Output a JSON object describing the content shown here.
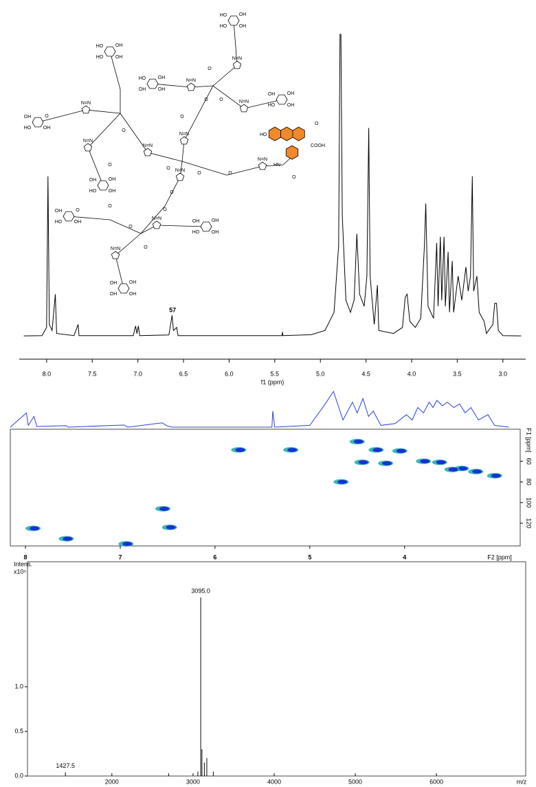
{
  "structure": {
    "sugars": [
      [
        "HO",
        "OH",
        "HO",
        "OH"
      ],
      [
        "HO",
        "OH",
        "HO",
        "OH"
      ],
      [
        "HO",
        "OH",
        "OH",
        "OH"
      ],
      [
        "OH",
        "OH",
        "HO",
        "OH"
      ],
      [
        "OH",
        "O",
        "HO",
        "OH"
      ],
      [
        "OH",
        "OH",
        "HO",
        "OH"
      ],
      [
        "OH",
        "O",
        "HO",
        "OH"
      ],
      [
        "OH",
        "OH",
        "OH",
        "OH"
      ],
      [
        "OH",
        "OH",
        "HO",
        "OH"
      ]
    ],
    "triazoles": [
      "N=N",
      "N=N",
      "N=N",
      "N=N",
      "N=N",
      "N=N",
      "N=N",
      "N=N",
      "N=N",
      "N=N",
      "N=N"
    ],
    "oxygens": [
      "O",
      "O",
      "O",
      "O",
      "O",
      "O",
      "O",
      "O",
      "O",
      "O",
      "O",
      "O",
      "O",
      "O"
    ],
    "fluorescein": [
      "HO",
      "O",
      "COOH",
      "HN",
      "O"
    ]
  },
  "chart_data": [
    {
      "type": "line",
      "color": "#000000",
      "xlabel": "f1 (ppm)",
      "annotation": "57",
      "xlim": [
        8.3,
        2.75
      ],
      "ylim": [
        0,
        100
      ],
      "xticks": [
        {
          "value": 8,
          "label": "8.0"
        },
        7.5,
        {
          "value": 7,
          "label": "7.0"
        },
        6.5,
        {
          "value": 6,
          "label": "6.0"
        },
        5.5,
        {
          "value": 5,
          "label": "5.0"
        },
        4.5,
        {
          "value": 4,
          "label": "4.0"
        },
        3.5,
        {
          "value": 3,
          "label": "3.0"
        }
      ],
      "x": [
        8.25,
        8.05,
        8.0,
        7.985,
        7.97,
        7.94,
        7.905,
        7.89,
        7.7,
        7.655,
        7.645,
        7.05,
        7.025,
        7.01,
        6.995,
        6.98,
        6.66,
        6.625,
        6.61,
        6.575,
        6.56,
        6.0,
        5.42,
        5.415,
        5.41,
        5.1,
        4.95,
        4.85,
        4.8,
        4.785,
        4.775,
        4.76,
        4.72,
        4.67,
        4.63,
        4.6,
        4.57,
        4.52,
        4.49,
        4.47,
        4.455,
        4.41,
        4.375,
        4.36,
        4.2,
        4.1,
        4.07,
        4.05,
        4.02,
        3.96,
        3.9,
        3.86,
        3.845,
        3.82,
        3.76,
        3.725,
        3.71,
        3.685,
        3.67,
        3.645,
        3.63,
        3.6,
        3.585,
        3.555,
        3.54,
        3.49,
        3.45,
        3.405,
        3.38,
        3.355,
        3.335,
        3.32,
        3.285,
        3.26,
        3.205,
        3.18,
        3.11,
        3.09,
        3.07,
        3.05,
        3.0,
        2.8
      ],
      "values": [
        0.2,
        0.3,
        3,
        53,
        4,
        2,
        14,
        1,
        0.3,
        4,
        0.3,
        0.3,
        3.5,
        1,
        3.5,
        0.3,
        0.5,
        7,
        2,
        3,
        0.3,
        0.3,
        0.3,
        1.5,
        0.3,
        0.6,
        2,
        8,
        30,
        100,
        100,
        40,
        12,
        8,
        12,
        34,
        14,
        10,
        20,
        69,
        20,
        4,
        17,
        2,
        1,
        3,
        13,
        14,
        5,
        3,
        6,
        30,
        44,
        10,
        6,
        31,
        10,
        33,
        12,
        33,
        10,
        28,
        8,
        25,
        8,
        20,
        12,
        23,
        15,
        20,
        53,
        15,
        20,
        8,
        5,
        1,
        4,
        11,
        11,
        2,
        0.3,
        0.2
      ]
    },
    {
      "type": "scatter",
      "color": "#1a2fd6",
      "halo_color": "#3cb8b4",
      "xlabel": "F2 [ppm]",
      "ylabel": "F1 [ppm]",
      "xlim": [
        8.16,
        2.78
      ],
      "ylim": [
        29,
        142
      ],
      "xticks": [
        8,
        7,
        6,
        5,
        4
      ],
      "yticks": [
        60,
        80,
        100,
        120
      ],
      "x": [
        7.92,
        7.57,
        6.94,
        6.55,
        6.48,
        5.75,
        5.2,
        4.67,
        4.5,
        4.3,
        4.05,
        3.63,
        3.4,
        3.05,
        4.45,
        4.2,
        3.8,
        3.5,
        3.25
      ],
      "values": [
        125,
        135,
        140,
        106,
        124,
        49,
        49,
        80,
        41,
        49,
        50,
        61,
        67,
        74,
        61,
        62,
        60,
        68,
        70
      ],
      "projection": {
        "color": "#2b3de0",
        "ylim": [
          0,
          100
        ],
        "x": [
          8.16,
          7.99,
          7.97,
          7.91,
          7.88,
          7.57,
          7.55,
          6.96,
          6.92,
          6.56,
          6.5,
          6.45,
          5.4,
          5.39,
          5.37,
          5.0,
          4.85,
          4.75,
          4.65,
          4.55,
          4.5,
          4.44,
          4.38,
          4.33,
          4.25,
          4.1,
          3.98,
          3.92,
          3.86,
          3.8,
          3.74,
          3.7,
          3.66,
          3.6,
          3.55,
          3.48,
          3.42,
          3.36,
          3.3,
          3.22,
          3.12,
          3.05,
          2.9
        ],
        "values": [
          0,
          40,
          5,
          30,
          2,
          4,
          0,
          6,
          0,
          12,
          3,
          0,
          0,
          45,
          0,
          5,
          60,
          100,
          20,
          70,
          40,
          80,
          30,
          45,
          5,
          10,
          35,
          20,
          55,
          40,
          70,
          55,
          75,
          60,
          70,
          55,
          65,
          40,
          55,
          20,
          35,
          5,
          0
        ]
      }
    },
    {
      "type": "stem",
      "color": "#000000",
      "ylabel": "Intens.",
      "yunit": "x10⁵",
      "xlabel": "m/z",
      "xlim": [
        960,
        7100
      ],
      "ylim": [
        0,
        2.4
      ],
      "xticks": [
        2000,
        3000,
        4000,
        5000,
        6000
      ],
      "yticks": [
        {
          "value": 0,
          "label": "0.0"
        },
        0.5,
        {
          "value": 1,
          "label": "1.0"
        }
      ],
      "x": [
        1427.5,
        2700,
        3060,
        3095,
        3110,
        3140,
        3170,
        3250
      ],
      "values": [
        0.04,
        0.03,
        0.05,
        2.0,
        0.3,
        0.15,
        0.2,
        0.05
      ],
      "peak_labels": [
        {
          "value": 3095,
          "label": "3095.0"
        },
        {
          "value": 1427.5,
          "label": "1427.5"
        }
      ]
    }
  ]
}
